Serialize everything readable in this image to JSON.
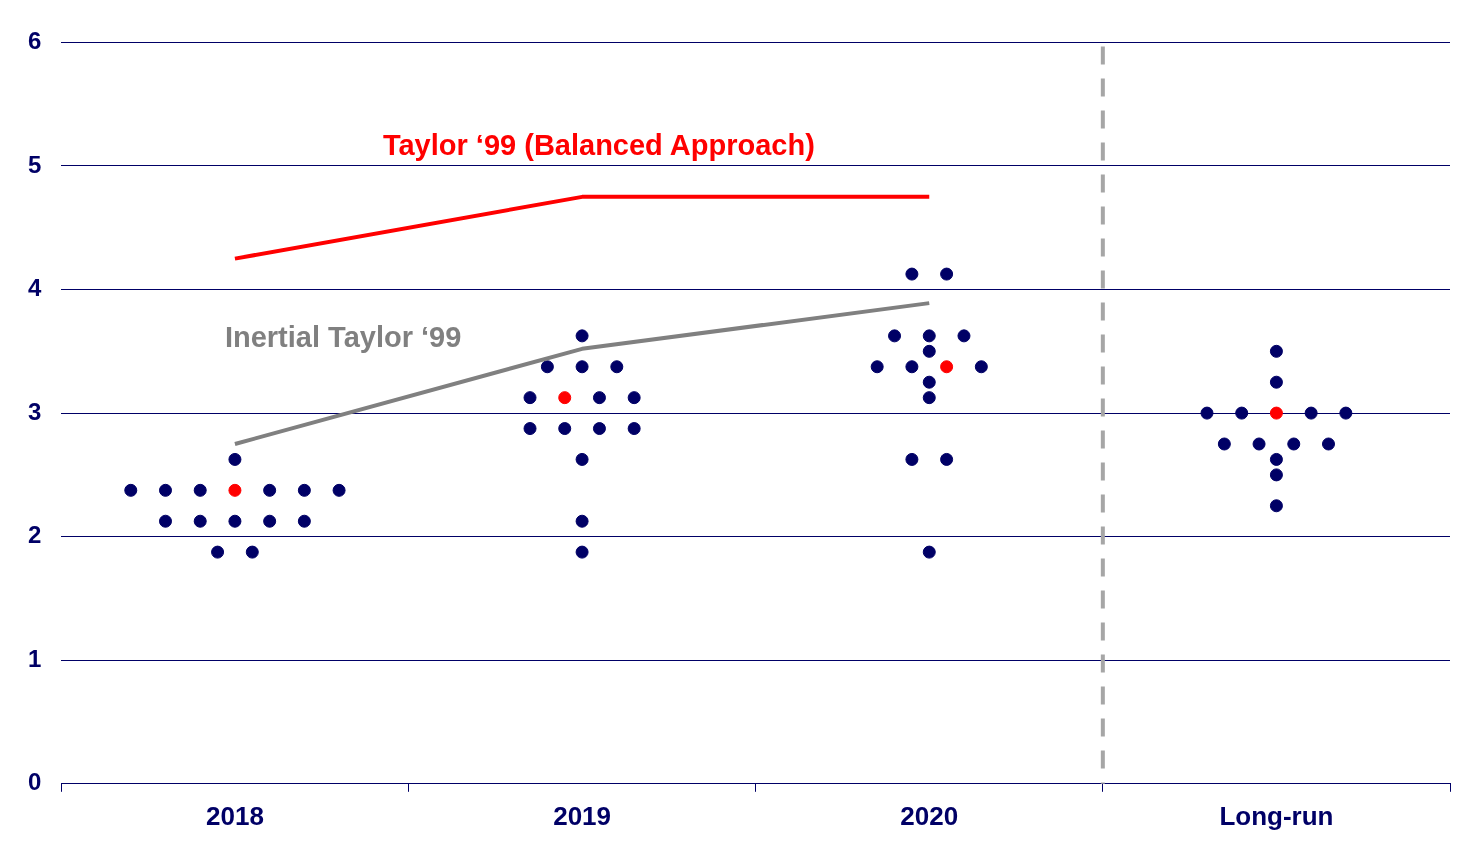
{
  "chart_data": {
    "type": "scatter",
    "xlim": [
      2017.5,
      2021.5
    ],
    "xticks": [
      {
        "value": 2017.5,
        "label": null
      },
      2018,
      {
        "value": 2018.5,
        "label": null
      },
      2019,
      {
        "value": 2019.5,
        "label": null
      },
      2020,
      {
        "value": 2020.5,
        "label": null
      },
      {
        "value": 2021,
        "label": "Long-run"
      },
      {
        "value": 2021.5,
        "label": null
      }
    ],
    "ylim": [
      0,
      6
    ],
    "yticks": [
      0,
      1,
      2,
      3,
      4,
      5,
      6
    ],
    "grid": "y",
    "legend": false,
    "ref_lines": [
      {
        "axis": "x",
        "value": 2020.5,
        "color": "#a6a6a6",
        "line_style": "dashed"
      }
    ],
    "series": [
      {
        "type": "line",
        "name": "Taylor ‘99 (Balanced Approach)",
        "color": "#ff0000",
        "marker": "none",
        "x": [
          2018,
          2019,
          2020
        ],
        "values": [
          4.25,
          4.75,
          4.75
        ]
      },
      {
        "type": "line",
        "name": "Inertial Taylor ‘99",
        "color": "#808080",
        "marker": "none",
        "x": [
          2018,
          2019,
          2020
        ],
        "values": [
          2.75,
          3.52,
          3.89
        ]
      },
      {
        "type": "scatter",
        "marker": "circle",
        "x": [
          2018,
          2017.7,
          2017.8,
          2017.9,
          2018,
          2018.1,
          2018.2,
          2018.3,
          2017.8,
          2017.9,
          2018,
          2018.1,
          2018.2,
          2017.95,
          2018.05,
          2019,
          2018.9,
          2019,
          2019.1,
          2018.85,
          2018.95,
          2019.05,
          2019.15,
          2018.85,
          2018.95,
          2019.05,
          2019.15,
          2019,
          2019,
          2019,
          2019.95,
          2020.05,
          2019.9,
          2020,
          2020.1,
          2020,
          2019.85,
          2019.95,
          2020.05,
          2020.15,
          2020,
          2020,
          2019.95,
          2020.05,
          2020,
          2021,
          2021,
          2020.8,
          2020.9,
          2021,
          2021.1,
          2021.2,
          2020.85,
          2020.95,
          2021.05,
          2021.15,
          2021,
          2021,
          2021
        ],
        "values": [
          2.625,
          2.375,
          2.375,
          2.375,
          2.375,
          2.375,
          2.375,
          2.375,
          2.125,
          2.125,
          2.125,
          2.125,
          2.125,
          1.875,
          1.875,
          3.625,
          3.375,
          3.375,
          3.375,
          3.125,
          3.125,
          3.125,
          3.125,
          2.875,
          2.875,
          2.875,
          2.875,
          2.625,
          2.125,
          1.875,
          4.125,
          4.125,
          3.625,
          3.625,
          3.625,
          3.5,
          3.375,
          3.375,
          3.375,
          3.375,
          3.25,
          3.125,
          2.625,
          2.625,
          1.875,
          3.5,
          3.25,
          3,
          3,
          3,
          3,
          3,
          2.75,
          2.75,
          2.75,
          2.75,
          2.625,
          2.5,
          2.25
        ],
        "colors": [
          "#000066",
          "#000066",
          "#000066",
          "#000066",
          "#ff0000",
          "#000066",
          "#000066",
          "#000066",
          "#000066",
          "#000066",
          "#000066",
          "#000066",
          "#000066",
          "#000066",
          "#000066",
          "#000066",
          "#000066",
          "#000066",
          "#000066",
          "#000066",
          "#ff0000",
          "#000066",
          "#000066",
          "#000066",
          "#000066",
          "#000066",
          "#000066",
          "#000066",
          "#000066",
          "#000066",
          "#000066",
          "#000066",
          "#000066",
          "#000066",
          "#000066",
          "#000066",
          "#000066",
          "#000066",
          "#ff0000",
          "#000066",
          "#000066",
          "#000066",
          "#000066",
          "#000066",
          "#000066",
          "#000066",
          "#000066",
          "#000066",
          "#000066",
          "#ff0000",
          "#000066",
          "#000066",
          "#000066",
          "#000066",
          "#000066",
          "#000066",
          "#000066",
          "#000066",
          "#000066"
        ]
      }
    ]
  }
}
